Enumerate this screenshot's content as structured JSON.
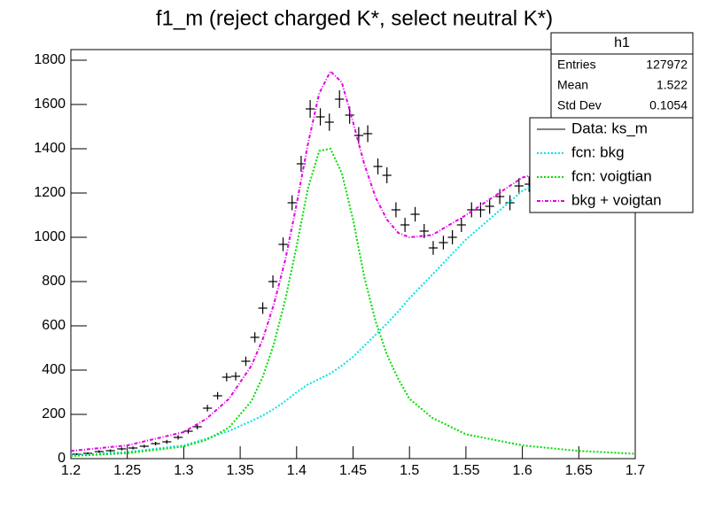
{
  "chart_data": {
    "type": "histfit",
    "title": "f1_m (reject charged K*, select neutral K*)",
    "xlim": [
      1.2,
      1.7
    ],
    "xticks": [
      1.2,
      1.25,
      1.3,
      1.35,
      1.4,
      1.45,
      1.5,
      1.55,
      1.6,
      1.65,
      1.7
    ],
    "ylim": [
      0,
      1800
    ],
    "yticks": [
      0,
      200,
      400,
      600,
      800,
      1000,
      1200,
      1400,
      1600,
      1800
    ],
    "data": {
      "name": "Data: ks_m",
      "color": "#000000",
      "xerr": 0.004,
      "x": [
        1.205,
        1.215,
        1.225,
        1.235,
        1.245,
        1.255,
        1.265,
        1.275,
        1.285,
        1.295,
        1.304,
        1.312,
        1.321,
        1.33,
        1.338,
        1.346,
        1.355,
        1.363,
        1.37,
        1.379,
        1.388,
        1.396,
        1.404,
        1.412,
        1.421,
        1.429,
        1.438,
        1.447,
        1.455,
        1.463,
        1.472,
        1.48,
        1.488,
        1.496,
        1.505,
        1.513,
        1.521,
        1.53,
        1.538,
        1.546,
        1.555,
        1.563,
        1.571,
        1.58,
        1.589,
        1.597,
        1.606
      ],
      "values": [
        20,
        24,
        32,
        36,
        44,
        48,
        56,
        68,
        76,
        96,
        124,
        144,
        228,
        284,
        368,
        372,
        440,
        548,
        680,
        800,
        968,
        1156,
        1332,
        1580,
        1544,
        1520,
        1624,
        1552,
        1460,
        1468,
        1320,
        1280,
        1124,
        1056,
        1104,
        1028,
        952,
        976,
        1000,
        1056,
        1124,
        1124,
        1140,
        1184,
        1156,
        1232,
        1240
      ],
      "yerrors": [
        4,
        5,
        6,
        6,
        7,
        7,
        7,
        8,
        9,
        10,
        11,
        12,
        15,
        17,
        19,
        19,
        21,
        23,
        26,
        28,
        31,
        34,
        36,
        40,
        39,
        39,
        40,
        39,
        38,
        38,
        36,
        36,
        34,
        32,
        33,
        32,
        31,
        31,
        32,
        32,
        34,
        34,
        34,
        34,
        34,
        35,
        35
      ]
    },
    "curves": {
      "x": [
        1.2,
        1.25,
        1.3,
        1.32,
        1.34,
        1.36,
        1.37,
        1.38,
        1.39,
        1.4,
        1.41,
        1.42,
        1.43,
        1.44,
        1.45,
        1.46,
        1.47,
        1.48,
        1.49,
        1.5,
        1.52,
        1.55,
        1.6,
        1.65,
        1.7
      ],
      "series": [
        {
          "name": "fcn: bkg",
          "color": "#00e5e5",
          "values": [
            15,
            30,
            60,
            90,
            125,
            170,
            195,
            225,
            260,
            300,
            335,
            360,
            385,
            420,
            460,
            510,
            560,
            610,
            665,
            725,
            830,
            990,
            1210,
            1330,
            1400
          ]
        },
        {
          "name": "fcn: voigtian",
          "color": "#00dd00",
          "values": [
            12,
            25,
            55,
            85,
            140,
            260,
            370,
            520,
            720,
            960,
            1220,
            1390,
            1400,
            1290,
            1080,
            820,
            620,
            470,
            360,
            270,
            185,
            110,
            60,
            35,
            22
          ]
        },
        {
          "name": "bkg + voigtan",
          "color": "#e500e5",
          "values": [
            35,
            60,
            120,
            180,
            270,
            420,
            540,
            700,
            900,
            1150,
            1420,
            1650,
            1750,
            1700,
            1520,
            1330,
            1180,
            1080,
            1020,
            1000,
            1010,
            1100,
            1270,
            1330,
            1400
          ]
        }
      ]
    },
    "stats": {
      "title": "h1",
      "rows": [
        [
          "Entries",
          "127972"
        ],
        [
          "Mean",
          "1.522"
        ],
        [
          "Std Dev",
          "0.1054"
        ]
      ]
    }
  }
}
